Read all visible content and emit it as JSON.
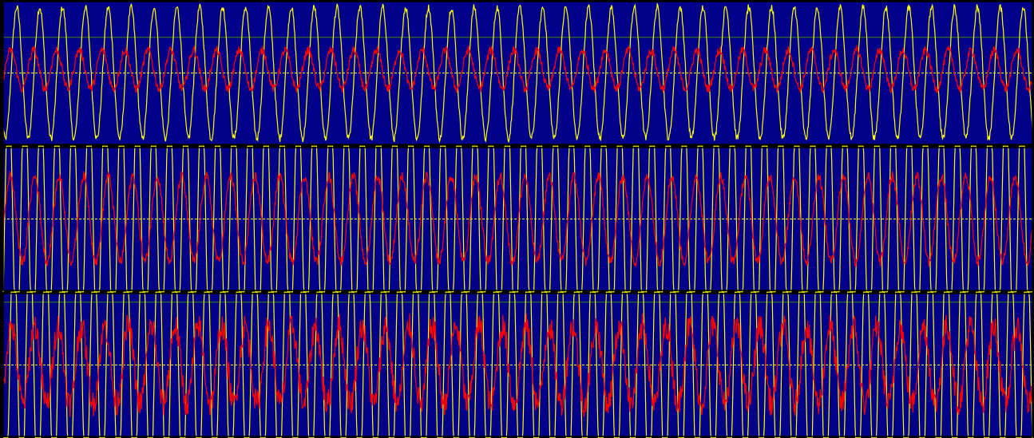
{
  "colors": {
    "background": "#00008B",
    "frame": "#000000",
    "trace_yellow": "#FFFF00",
    "trace_red": "#FF0000",
    "grid_green": "#3C8C00",
    "center_line": "#FFFF00"
  },
  "chart_data": [
    {
      "type": "line",
      "grid": true,
      "x_range": [
        0,
        1
      ],
      "ylim": [
        -1,
        1
      ],
      "reference_lines": [
        0.5,
        0
      ],
      "series": [
        {
          "color": "#FFFF00",
          "cycles": 45,
          "amplitude": 0.92,
          "offset": 0,
          "noise": 0.05
        },
        {
          "color": "#FF0000",
          "cycles": 45,
          "amplitude": 0.27,
          "offset": 0.05,
          "noise": 0.06
        }
      ]
    },
    {
      "type": "line",
      "grid": true,
      "x_range": [
        0,
        1
      ],
      "ylim": [
        -1,
        1
      ],
      "reference_lines": [
        0
      ],
      "series": [
        {
          "color": "#FFFF00",
          "cycles": 64,
          "amplitude": 1.9,
          "offset": 0,
          "noise": 0.0,
          "clipped": true
        },
        {
          "color": "#FF0000",
          "cycles": 42,
          "amplitude": 0.6,
          "offset": 0,
          "noise": 0.07
        }
      ]
    },
    {
      "type": "line",
      "grid": true,
      "x_range": [
        0,
        1
      ],
      "ylim": [
        -1,
        1
      ],
      "reference_lines": [
        0.88,
        0
      ],
      "series": [
        {
          "color": "#FFFF00",
          "cycles": 64,
          "amplitude": 1.9,
          "offset": 0,
          "noise": 0.0,
          "clipped": true
        },
        {
          "color": "#FF0000",
          "cycles": 44,
          "amplitude": 0.55,
          "offset": 0,
          "noise": 0.18
        }
      ]
    }
  ]
}
